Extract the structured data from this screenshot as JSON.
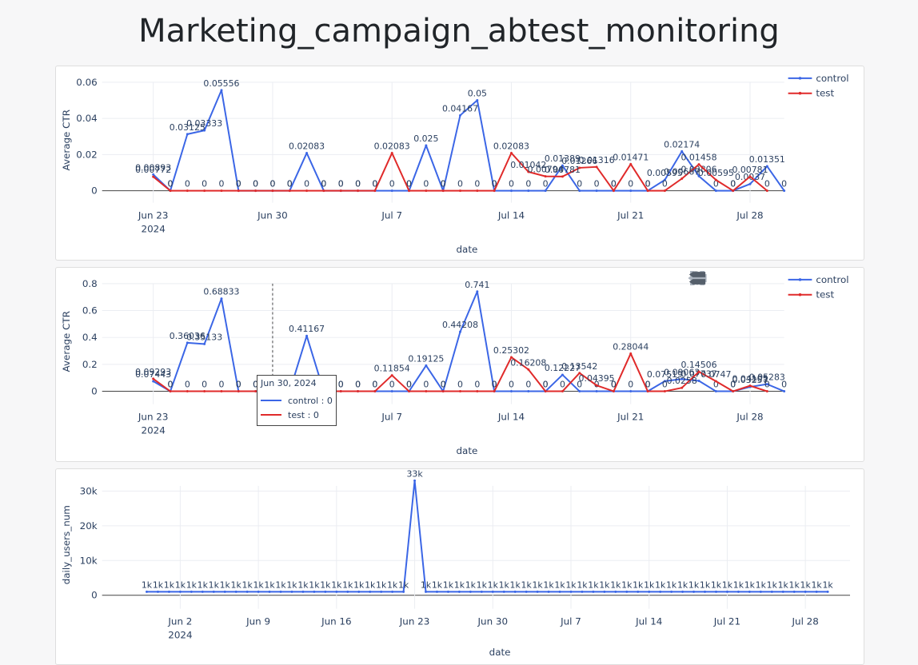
{
  "page": {
    "title": "Marketing_campaign_abtest_monitoring"
  },
  "colors": {
    "control": "#3b66e6",
    "test": "#e02a2a",
    "grid": "#ebedf2",
    "text": "#2a3f5f"
  },
  "legend": {
    "control": "control",
    "test": "test"
  },
  "modebar_icons": [
    "camera-icon",
    "zoom-icon",
    "pan-icon",
    "zoom-in-icon",
    "zoom-out-icon",
    "autoscale-icon",
    "hover-closest-icon",
    "hover-compare-icon"
  ],
  "tooltip": {
    "title": "Jun 30, 2024",
    "control_text": "control : 0",
    "test_text": "test : 0"
  },
  "chart_data": [
    {
      "type": "line",
      "xlabel": "date",
      "ylabel": "Average CTR",
      "ylim": [
        -0.004,
        0.06
      ],
      "yticks": [
        0,
        0.02,
        0.04,
        0.06
      ],
      "ytick_labels": [
        "0",
        "0.02",
        "0.04",
        "0.06"
      ],
      "x_start": "2024-06-23",
      "xlim": [
        "2024-06-20",
        "2024-07-30"
      ],
      "xticks": [
        "2024-06-23",
        "2024-06-30",
        "2024-07-07",
        "2024-07-14",
        "2024-07-21",
        "2024-07-28"
      ],
      "xtick_labels": [
        "Jun 23",
        "Jun 30",
        "Jul 7",
        "Jul 14",
        "Jul 21",
        "Jul 28"
      ],
      "xtick_sublabel": "2024",
      "series": [
        {
          "name": "control",
          "values": [
            0.00893,
            0,
            0.03125,
            0.03333,
            0.05556,
            0,
            0,
            0,
            0,
            0.02083,
            0,
            0,
            0,
            0,
            0,
            0,
            0.025,
            0,
            0.04167,
            0.05,
            0,
            0,
            0,
            0,
            0.01389,
            0,
            0,
            0,
            0,
            0,
            0.00595,
            0.02174,
            0.00806,
            0,
            0,
            0.0037,
            0.01351,
            0
          ],
          "labels": [
            "0.00893",
            "0",
            "0.03125",
            "0.03333",
            "0.05556",
            "0",
            "0",
            "0",
            "0",
            "0.02083",
            "0",
            "0",
            "0",
            "0",
            "0",
            "0",
            "0.025",
            "0",
            "0.04167",
            "0.05",
            "0",
            "0",
            "0",
            "0",
            "0.01389",
            "0",
            "0",
            "0",
            "0",
            "0",
            "0.00595",
            "0.02174",
            "0.00806",
            "0",
            "0",
            "0.0037",
            "0.01351",
            "0"
          ]
        },
        {
          "name": "test",
          "values": [
            0.00772,
            0,
            0,
            0,
            0,
            0,
            0,
            0,
            0,
            0,
            0,
            0,
            0,
            0,
            0.02083,
            0,
            0,
            0,
            0,
            0,
            0,
            0.02083,
            0.01042,
            0.00794,
            0.00781,
            0.01266,
            0.01316,
            0,
            0.01471,
            0,
            0,
            0.00667,
            0.01458,
            0.00595,
            0,
            0.00781,
            0
          ],
          "labels": [
            "0.00772",
            "0",
            "0",
            "0",
            "0",
            "0",
            "0",
            "0",
            "0",
            "0",
            "0",
            "0",
            "0",
            "0",
            "0.02083",
            "0",
            "0",
            "0",
            "0",
            "0",
            "0",
            "0.02083",
            "0.01042",
            "0.00794",
            "0.00781",
            "0.01266",
            "0.01316",
            "0",
            "0.01471",
            "0",
            "0",
            "0.00667",
            "0.01458",
            "0.00595",
            "0",
            "0.00781",
            "0"
          ]
        }
      ]
    },
    {
      "type": "line",
      "xlabel": "date",
      "ylabel": "Average CTR",
      "ylim": [
        -0.06,
        0.8
      ],
      "yticks": [
        0,
        0.2,
        0.4,
        0.6,
        0.8
      ],
      "ytick_labels": [
        "0",
        "0.2",
        "0.4",
        "0.6",
        "0.8"
      ],
      "x_start": "2024-06-23",
      "xlim": [
        "2024-06-20",
        "2024-07-30"
      ],
      "xticks": [
        "2024-06-23",
        "2024-06-30",
        "2024-07-07",
        "2024-07-14",
        "2024-07-21",
        "2024-07-28"
      ],
      "xtick_labels": [
        "Jun 23",
        "Jun 30",
        "Jul 7",
        "Jul 14",
        "Jul 21",
        "Jul 28"
      ],
      "xtick_sublabel": "2024",
      "hover_date": "2024-06-30",
      "series": [
        {
          "name": "control",
          "values": [
            0.07443,
            0,
            0.36036,
            0.35133,
            0.68833,
            0,
            0,
            0,
            0,
            0.41167,
            0,
            0,
            0,
            0,
            0,
            0,
            0.19125,
            0,
            0.44208,
            0.741,
            0,
            0,
            0,
            0,
            0.12227,
            0,
            0,
            0,
            0,
            0,
            0.07519,
            0.09063,
            0.07737,
            0,
            0,
            0.03257,
            0.05283,
            0
          ],
          "labels": [
            "0.07443",
            "0",
            "0.36036",
            "0.35133",
            "0.68833",
            "0",
            "0",
            "0",
            "0",
            "0.41167",
            "0",
            "0",
            "0",
            "0",
            "0",
            "0",
            "0.19125",
            "0",
            "0.44208",
            "0.741",
            "0",
            "0",
            "0",
            "0",
            "0.12227",
            "0",
            "0",
            "0",
            "0",
            "0",
            "0.07519",
            "0.09063",
            "0.07737",
            "0",
            "0",
            "0.03257",
            "0.05283",
            "0"
          ]
        },
        {
          "name": "test",
          "values": [
            0.09293,
            0,
            0,
            0,
            0,
            0,
            0,
            0,
            0,
            0,
            0,
            0,
            0,
            0,
            0.11854,
            0,
            0,
            0,
            0,
            0,
            0,
            0.25302,
            0.16208,
            0,
            0,
            0.13542,
            0.04395,
            0,
            0.28044,
            0,
            0,
            0.0258,
            0.14506,
            0.0747,
            0,
            0.04105,
            0
          ],
          "labels": [
            "0.09293",
            "0",
            "0",
            "0",
            "0",
            "0",
            "0",
            "0",
            "0",
            "0",
            "0",
            "0",
            "0",
            "0",
            "0.11854",
            "0",
            "0",
            "0",
            "0",
            "0",
            "0",
            "0.25302",
            "0.16208",
            "0",
            "0",
            "0.13542",
            "0.04395",
            "0",
            "0.28044",
            "0",
            "0",
            "0.0258",
            "0.14506",
            "0.0747",
            "0",
            "0.04105",
            "0"
          ]
        }
      ]
    },
    {
      "type": "line",
      "xlabel": "date",
      "ylabel": "daily_users_num",
      "ylim": [
        -2500,
        31500
      ],
      "yticks": [
        0,
        10000,
        20000,
        30000
      ],
      "ytick_labels": [
        "0",
        "10k",
        "20k",
        "30k"
      ],
      "x_start": "2024-05-30",
      "xlim": [
        "2024-05-26",
        "2024-08-01"
      ],
      "xticks": [
        "2024-06-02",
        "2024-06-09",
        "2024-06-16",
        "2024-06-23",
        "2024-06-30",
        "2024-07-07",
        "2024-07-14",
        "2024-07-21",
        "2024-07-28"
      ],
      "xtick_labels": [
        "Jun 2",
        "Jun 9",
        "Jun 16",
        "Jun 23",
        "Jun 30",
        "Jul 7",
        "Jul 14",
        "Jul 21",
        "Jul 28"
      ],
      "xtick_sublabel": "2024",
      "series": [
        {
          "name": "daily_users_num",
          "values": [
            1000,
            1000,
            1000,
            1000,
            1000,
            1000,
            1000,
            1000,
            1000,
            1000,
            1000,
            1000,
            1000,
            1000,
            1000,
            1000,
            1000,
            1000,
            1000,
            1000,
            1000,
            1000,
            1000,
            1000,
            33000,
            1000,
            1000,
            1000,
            1000,
            1000,
            1000,
            1000,
            1000,
            1000,
            1000,
            1000,
            1000,
            1000,
            1000,
            1000,
            1000,
            1000,
            1000,
            1000,
            1000,
            1000,
            1000,
            1000,
            1000,
            1000,
            1000,
            1000,
            1000,
            1000,
            1000,
            1000,
            1000,
            1000,
            1000,
            1000,
            1000,
            1000
          ],
          "labels": [
            "1k",
            "1k",
            "1k",
            "1k",
            "1k",
            "1k",
            "1k",
            "1k",
            "1k",
            "1k",
            "1k",
            "1k",
            "1k",
            "1k",
            "1k",
            "1k",
            "1k",
            "1k",
            "1k",
            "1k",
            "1k",
            "1k",
            "1k",
            "1k",
            "33k",
            "1k",
            "1k",
            "1k",
            "1k",
            "1k",
            "1k",
            "1k",
            "1k",
            "1k",
            "1k",
            "1k",
            "1k",
            "1k",
            "1k",
            "1k",
            "1k",
            "1k",
            "1k",
            "1k",
            "1k",
            "1k",
            "1k",
            "1k",
            "1k",
            "1k",
            "1k",
            "1k",
            "1k",
            "1k",
            "1k",
            "1k",
            "1k",
            "1k",
            "1k",
            "1k",
            "1k",
            "1k"
          ]
        }
      ]
    }
  ]
}
